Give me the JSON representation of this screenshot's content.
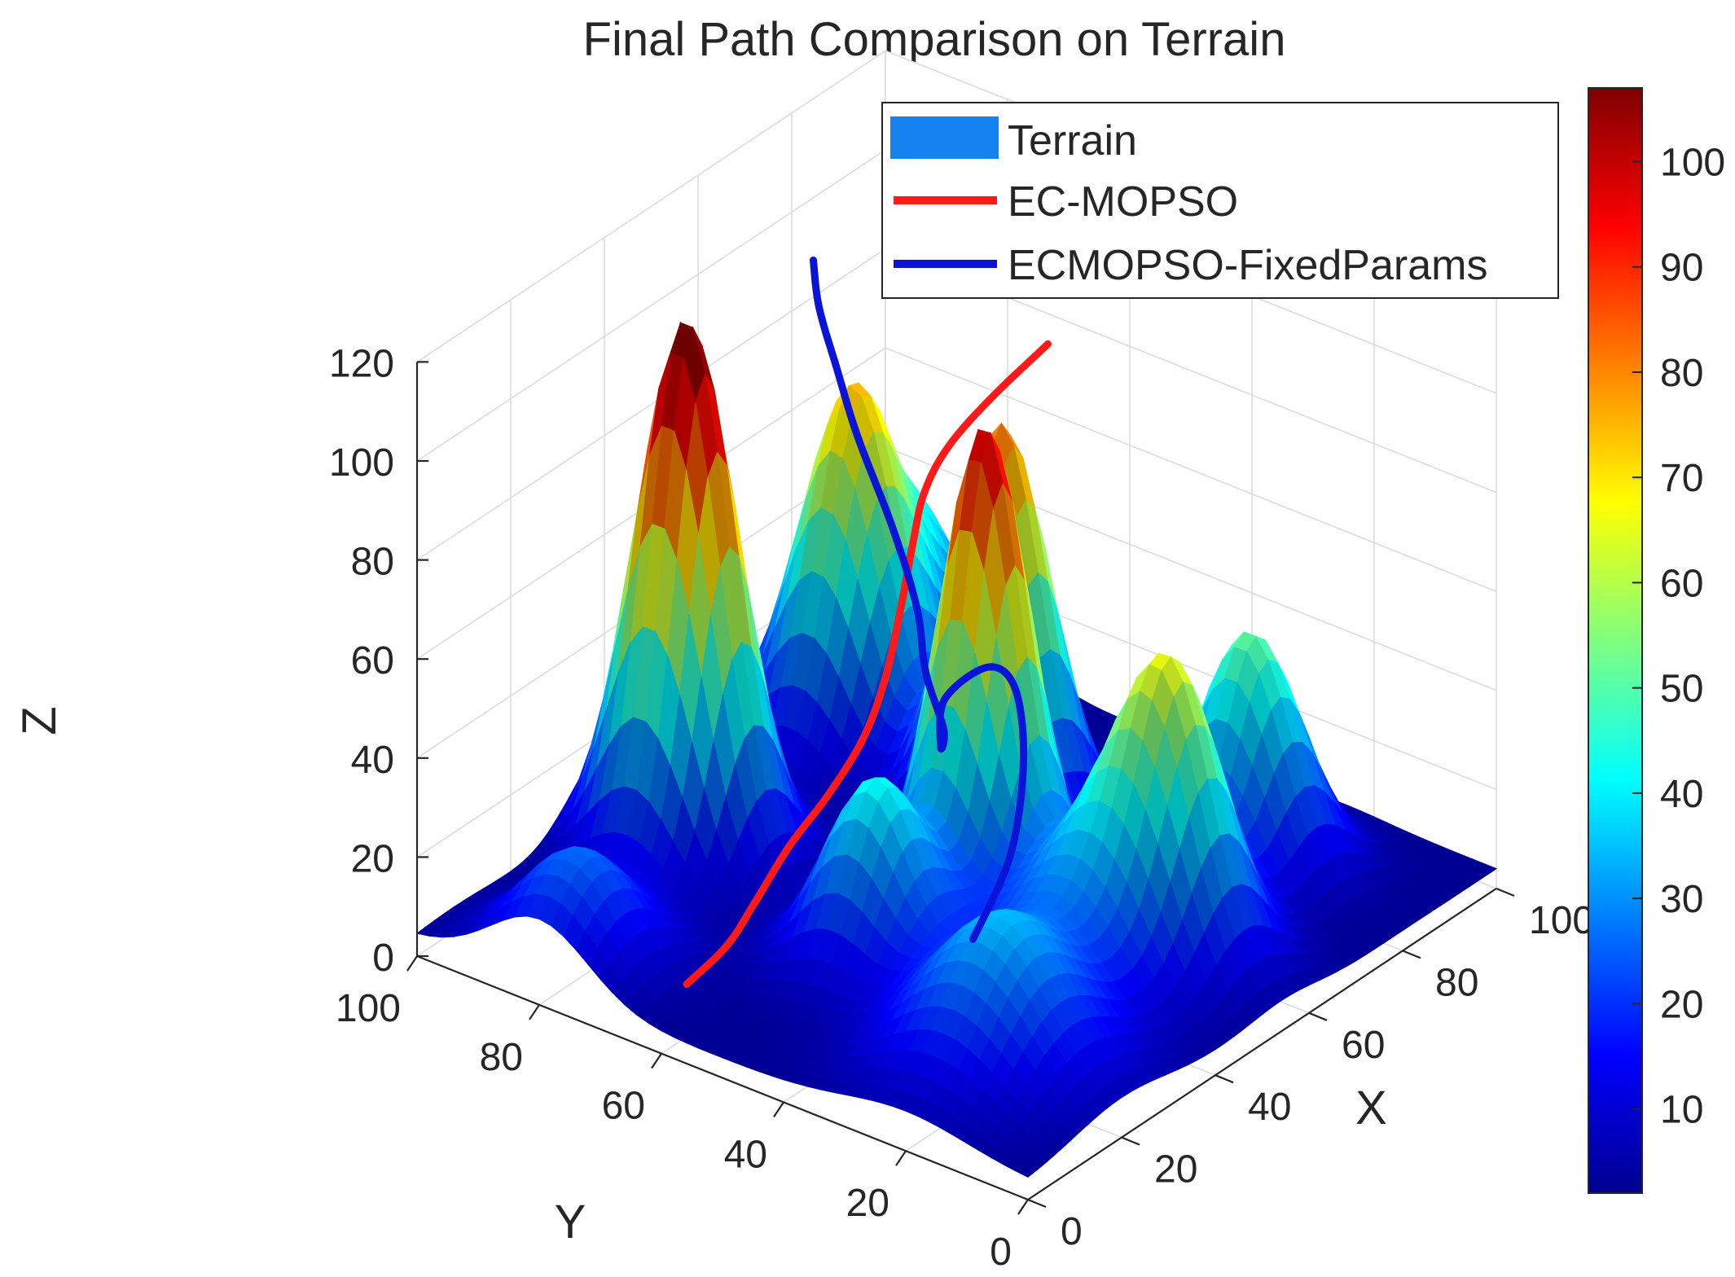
{
  "chart_data": {
    "type": "surface3d",
    "title": "Final Path Comparison on Terrain",
    "xlabel": "X",
    "ylabel": "Y",
    "zlabel": "Z",
    "xlim": [
      0,
      100
    ],
    "ylim": [
      0,
      100
    ],
    "zlim": [
      0,
      120
    ],
    "x_ticks": [
      "0",
      "20",
      "40",
      "60",
      "80",
      "100"
    ],
    "y_ticks": [
      "0",
      "20",
      "40",
      "60",
      "80",
      "100"
    ],
    "z_ticks": [
      "0",
      "20",
      "40",
      "60",
      "80",
      "100",
      "120"
    ],
    "grid": true,
    "colormap": "jet",
    "colorbar": {
      "range": [
        2,
        107
      ],
      "ticks": [
        "10",
        "20",
        "30",
        "40",
        "50",
        "60",
        "70",
        "80",
        "90",
        "100"
      ]
    },
    "legend": {
      "placement": "top-right",
      "entries": [
        {
          "label": "Terrain",
          "color": "#1682f0"
        },
        {
          "label": "EC-MOPSO",
          "color": "#ff1a1a"
        },
        {
          "label": "ECMOPSO-FixedParams",
          "color": "#0a14d8"
        }
      ]
    },
    "peaks": [
      {
        "x": 38,
        "y": 85,
        "h": 108,
        "sx": 6.5,
        "sy": 7.0
      },
      {
        "x": 52,
        "y": 47,
        "h": 95,
        "sx": 6.0,
        "sy": 6.0
      },
      {
        "x": 70,
        "y": 58,
        "h": 80,
        "sx": 6.5,
        "sy": 6.5
      },
      {
        "x": 73,
        "y": 85,
        "h": 62,
        "sx": 7.0,
        "sy": 7.0
      },
      {
        "x": 30,
        "y": 48,
        "h": 38,
        "sx": 7.0,
        "sy": 7.0
      },
      {
        "x": 80,
        "y": 25,
        "h": 48,
        "sx": 7.0,
        "sy": 7.0
      },
      {
        "x": 55,
        "y": 18,
        "h": 52,
        "sx": 7.0,
        "sy": 7.0
      },
      {
        "x": 88,
        "y": 90,
        "h": 40,
        "sx": 9.0,
        "sy": 9.0
      },
      {
        "x": 20,
        "y": 20,
        "h": 30,
        "sx": 10.0,
        "sy": 10.0
      },
      {
        "x": 45,
        "y": 25,
        "h": 25,
        "sx": 9.0,
        "sy": 9.0
      },
      {
        "x": 8,
        "y": 80,
        "h": 22,
        "sx": 8.0,
        "sy": 8.0
      }
    ],
    "series": [
      {
        "name": "EC-MOPSO",
        "color": "#ff1a1a",
        "points": [
          [
            8,
            62,
            8
          ],
          [
            14,
            60,
            13
          ],
          [
            20,
            60,
            18
          ],
          [
            26,
            59,
            26
          ],
          [
            32,
            57,
            34
          ],
          [
            38,
            56,
            42
          ],
          [
            44,
            57,
            50
          ],
          [
            50,
            59,
            60
          ],
          [
            55,
            61,
            68
          ],
          [
            60,
            63,
            74
          ],
          [
            65,
            63,
            80
          ],
          [
            70,
            60,
            88
          ],
          [
            76,
            55,
            98
          ]
        ]
      },
      {
        "name": "ECMOPSO-FixedParams",
        "color": "#0a14d8",
        "points": [
          [
            30,
            32,
            18
          ],
          [
            38,
            32,
            30
          ],
          [
            46,
            36,
            42
          ],
          [
            52,
            42,
            50
          ],
          [
            54,
            48,
            50
          ],
          [
            50,
            52,
            44
          ],
          [
            44,
            48,
            40
          ],
          [
            42,
            46,
            46
          ],
          [
            46,
            52,
            52
          ],
          [
            52,
            58,
            58
          ],
          [
            60,
            68,
            64
          ],
          [
            68,
            80,
            72
          ],
          [
            74,
            88,
            78
          ],
          [
            78,
            94,
            85
          ],
          [
            82,
            98,
            90
          ]
        ]
      }
    ]
  }
}
